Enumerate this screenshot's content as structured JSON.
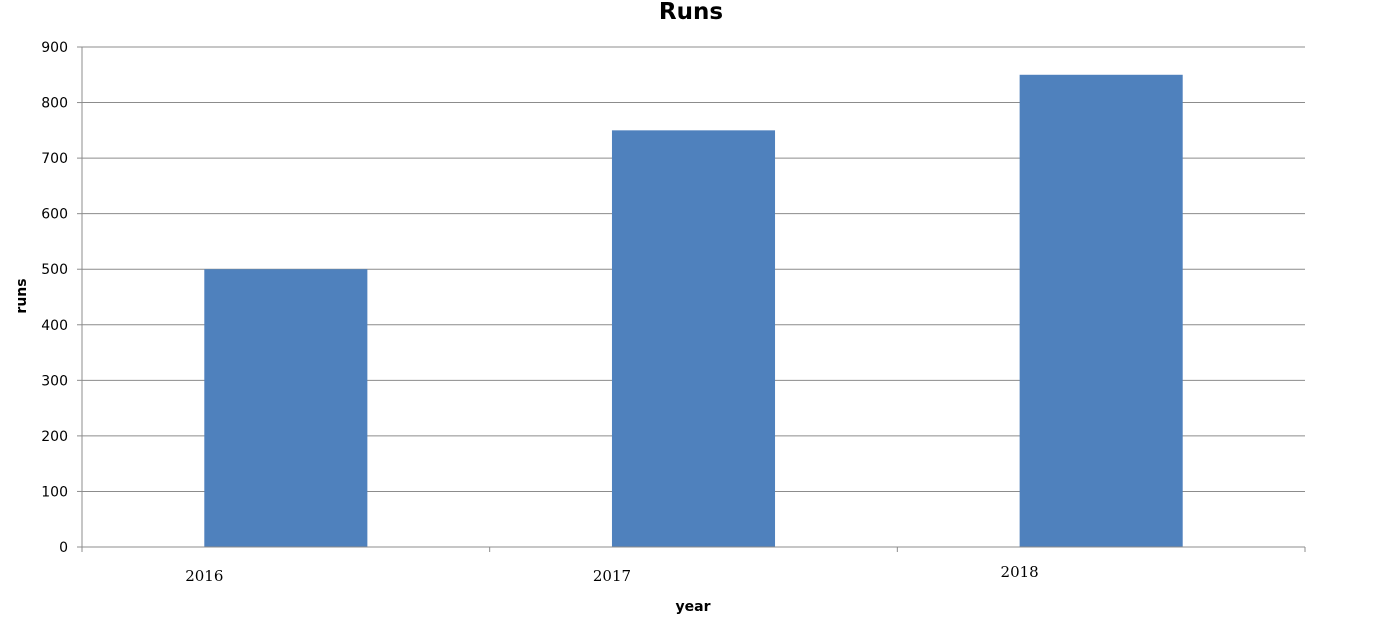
{
  "chart_data": {
    "type": "bar",
    "title": "Runs",
    "xlabel": "year",
    "ylabel": "runs",
    "categories": [
      "2016",
      "2017",
      "2018"
    ],
    "values": [
      500,
      750,
      850
    ],
    "ylim": [
      0,
      900
    ],
    "yticks": [
      "0",
      "100",
      "200",
      "300",
      "400",
      "500",
      "600",
      "700",
      "800",
      "900"
    ],
    "grid": true,
    "legend": "none",
    "bar_color": "#4f81bd"
  }
}
